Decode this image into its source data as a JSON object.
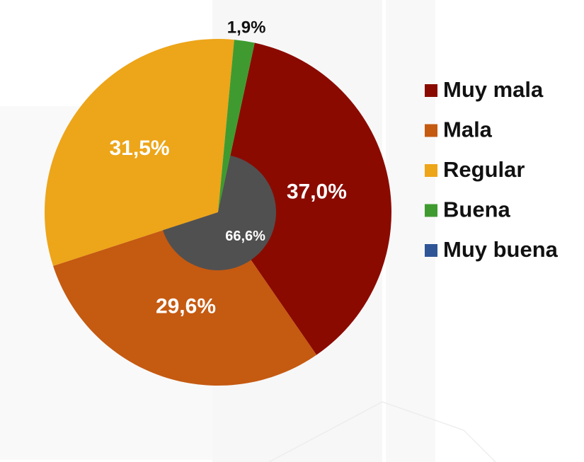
{
  "chart_data": {
    "type": "pie",
    "categories": [
      "Muy mala",
      "Mala",
      "Regular",
      "Buena",
      "Muy buena"
    ],
    "values": [
      37.0,
      29.6,
      31.5,
      1.9,
      0
    ],
    "value_labels": [
      "37,0%",
      "29,6%",
      "31,5%",
      "1,9%",
      null
    ],
    "colors": [
      "#8b0a00",
      "#c55a11",
      "#eda519",
      "#3f9b2f",
      "#2f5597"
    ],
    "inner_annotation": {
      "value": 66.6,
      "label": "66,6%",
      "color": "#505050"
    },
    "legend": "right"
  }
}
